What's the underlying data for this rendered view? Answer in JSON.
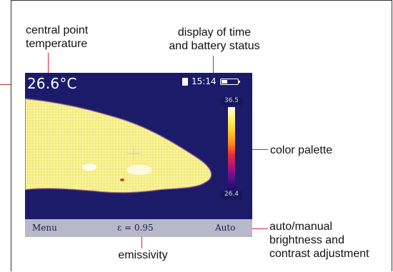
{
  "callouts": {
    "central_point": "central point\ntemperature",
    "display_time": "display of time\nand battery status",
    "color_palette": "color palette",
    "auto_manual": "auto/manual\nbrightness and\ncontrast adjustment",
    "emissivity": "emissivity"
  },
  "screen": {
    "center_temp": "26.6°C",
    "time": "15:14",
    "battery_level": 0.35,
    "palette_max": "36.5",
    "palette_min": "26.4",
    "menu_label": "Menu",
    "emissivity_value": "ε = 0.95",
    "auto_label": "Auto"
  },
  "colors": {
    "callout_line": "#d22233",
    "screen_bg": "#1b1b6a",
    "hot_area": "#f5f08a"
  },
  "icons": [
    "sd-card-icon",
    "battery-icon",
    "crosshair-icon"
  ]
}
